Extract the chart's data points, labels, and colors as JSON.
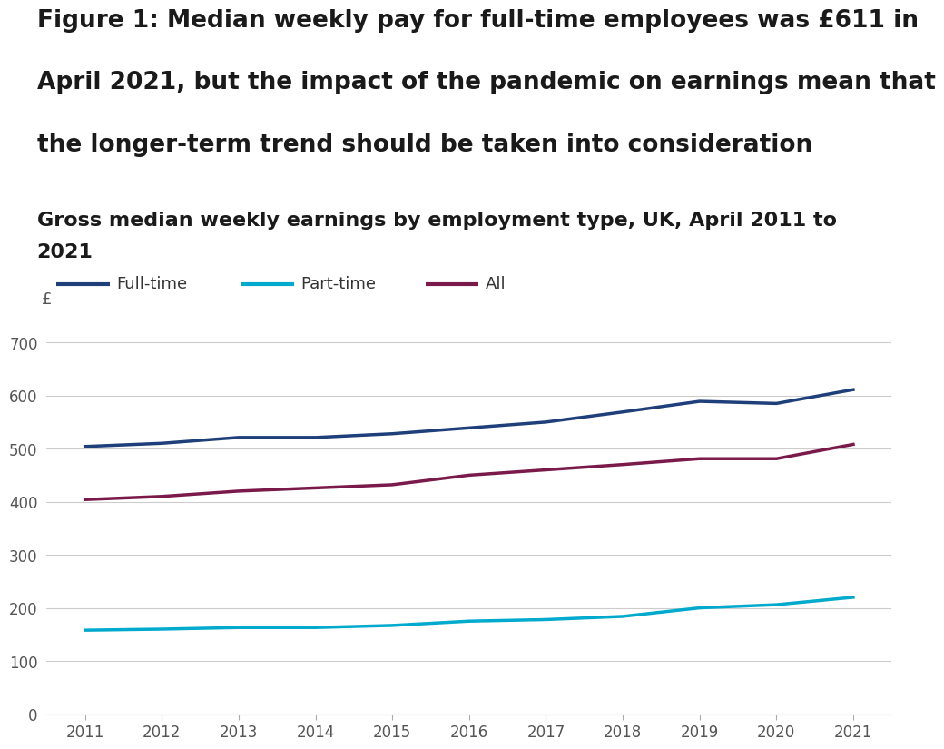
{
  "title_line1": "Figure 1: Median weekly pay for full-time employees was £611 in",
  "title_line2": "April 2021, but the impact of the pandemic on earnings mean that",
  "title_line3": "the longer-term trend should be taken into consideration",
  "subtitle_line1": "Gross median weekly earnings by employment type, UK, April 2011 to",
  "subtitle_line2": "2021",
  "years": [
    2011,
    2012,
    2013,
    2014,
    2015,
    2016,
    2017,
    2018,
    2019,
    2020,
    2021
  ],
  "fulltime": [
    504,
    510,
    521,
    521,
    528,
    539,
    550,
    569,
    589,
    585,
    611
  ],
  "parttime": [
    158,
    160,
    163,
    163,
    167,
    175,
    178,
    184,
    200,
    206,
    220
  ],
  "all": [
    404,
    410,
    420,
    426,
    432,
    450,
    460,
    470,
    481,
    481,
    508
  ],
  "fulltime_color": "#1f3f7a",
  "parttime_color": "#00aacc",
  "all_color": "#7a1a4a",
  "background_color": "#ffffff",
  "ylim": [
    0,
    730
  ],
  "yticks": [
    0,
    100,
    200,
    300,
    400,
    500,
    600,
    700
  ],
  "title_fontsize": 19,
  "subtitle_fontsize": 16,
  "axis_fontsize": 12,
  "legend_fontsize": 13,
  "line_width": 2.5,
  "pound_label": "£",
  "legend_labels": [
    "Full-time",
    "Part-time",
    "All"
  ]
}
